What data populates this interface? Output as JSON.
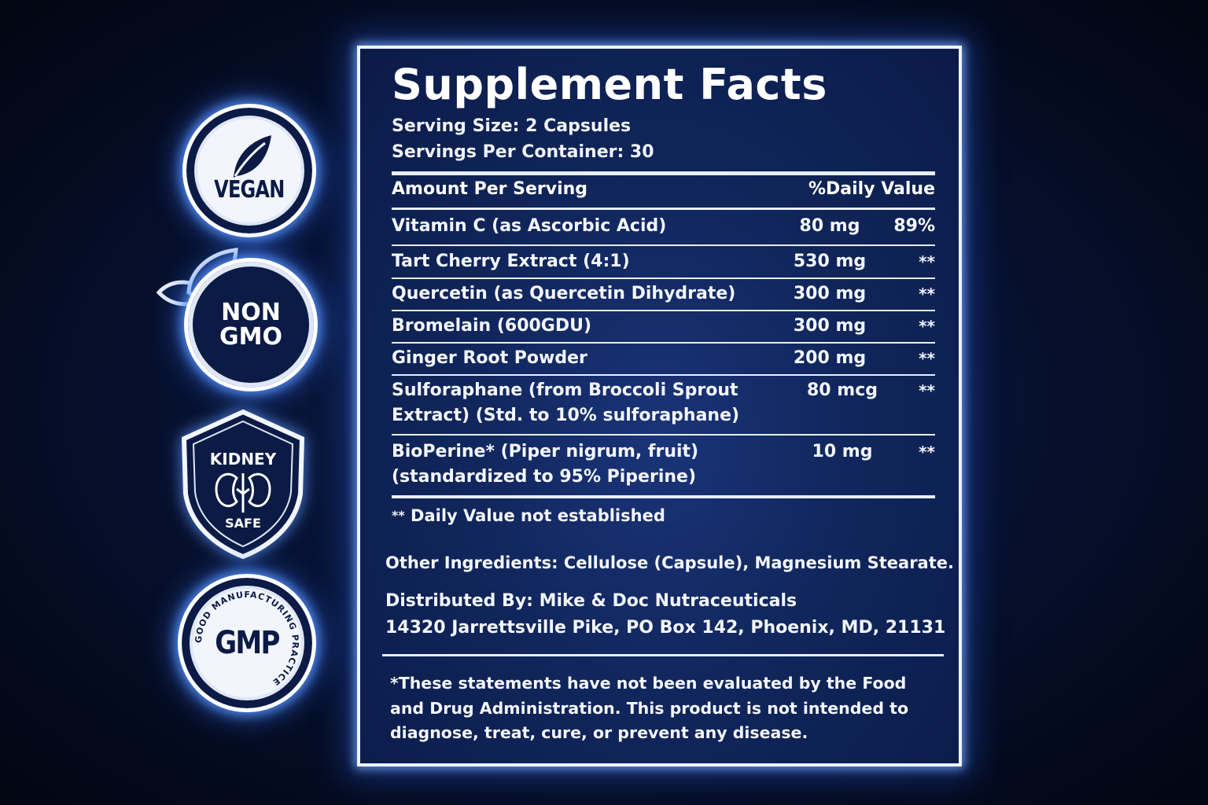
{
  "badges": {
    "vegan": "VEGAN",
    "non_gmo_line1": "NON",
    "non_gmo_line2": "GMO",
    "kidney_top": "KIDNEY",
    "kidney_bottom": "SAFE",
    "gmp": "GMP",
    "gmp_ring_text": "GOOD MANUFACTURING PRACTICE"
  },
  "facts": {
    "title": "Supplement Facts",
    "serving_size": "Serving Size: 2 Capsules",
    "servings_per_container": "Servings Per Container: 30",
    "header_amount": "Amount Per Serving",
    "header_dv": "%Daily Value",
    "rows": [
      {
        "name": "Vitamin C (as Ascorbic Acid)",
        "amount": "80 mg",
        "dv": "89%"
      },
      {
        "name": "Tart Cherry Extract (4:1)",
        "amount": "530 mg",
        "dv": "**"
      },
      {
        "name": "Quercetin (as Quercetin Dihydrate)",
        "amount": "300 mg",
        "dv": "**"
      },
      {
        "name": "Bromelain (600GDU)",
        "amount": "300 mg",
        "dv": "**"
      },
      {
        "name": "Ginger Root Powder",
        "amount": "200 mg",
        "dv": "**"
      },
      {
        "name_line1": "Sulforaphane (from Broccoli Sprout",
        "name_line2": "Extract) (Std. to 10% sulforaphane)",
        "amount": "80 mcg",
        "dv": "**"
      },
      {
        "name_line1": "BioPerine* (Piper nigrum, fruit)",
        "name_line2": "(standardized to 95% Piperine)",
        "amount": "10 mg",
        "dv": "**"
      }
    ],
    "note_stars": "**",
    "note_text": "Daily Value not established",
    "other_ingredients": "Other Ingredients: Cellulose (Capsule), Magnesium Stearate.",
    "distributed_by": "Distributed By: Mike & Doc Nutraceuticals",
    "address": "14320 Jarrettsville Pike, PO Box 142, Phoenix, MD, 21131",
    "disclaimer_line1": "*These statements have not been evaluated by the Food",
    "disclaimer_line2": "and Drug Administration. This product is not intended to",
    "disclaimer_line3": "diagnose, treat, cure, or prevent any disease."
  },
  "colors": {
    "background": "#040a1d",
    "panel": "#11265c",
    "badge_navy": "#0b1b45",
    "glow": "#5a96ff",
    "text": "#ffffff"
  }
}
